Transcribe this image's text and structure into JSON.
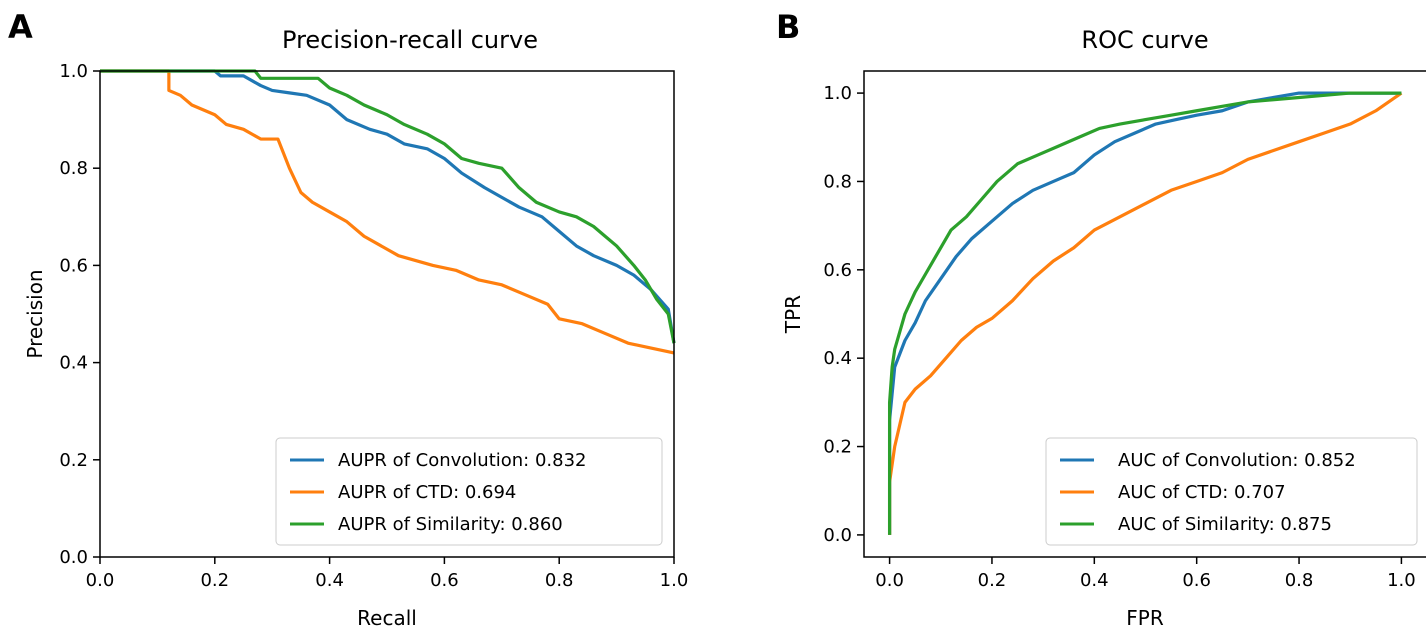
{
  "figure": {
    "panels": [
      "A",
      "B"
    ]
  },
  "chart_data": [
    {
      "type": "line",
      "panel": "A",
      "title": "Precision-recall curve",
      "xlabel": "Recall",
      "ylabel": "Precision",
      "xlim": [
        0,
        1
      ],
      "ylim": [
        0,
        1
      ],
      "xticks": [
        0.0,
        0.2,
        0.4,
        0.6,
        0.8,
        1.0
      ],
      "yticks": [
        0.0,
        0.2,
        0.4,
        0.6,
        0.8,
        1.0
      ],
      "xtick_labels": [
        "0.0",
        "0.2",
        "0.4",
        "0.6",
        "0.8",
        "1.0"
      ],
      "ytick_labels": [
        "0.0",
        "0.2",
        "0.4",
        "0.6",
        "0.8",
        "1.0"
      ],
      "grid": false,
      "legend_position": "lower-right",
      "series": [
        {
          "name": "AUPR of Convolution: 0.832",
          "color": "#1f77b4",
          "x": [
            0.0,
            0.2,
            0.21,
            0.25,
            0.28,
            0.3,
            0.33,
            0.36,
            0.4,
            0.43,
            0.47,
            0.5,
            0.53,
            0.57,
            0.6,
            0.63,
            0.67,
            0.7,
            0.73,
            0.77,
            0.8,
            0.83,
            0.86,
            0.9,
            0.93,
            0.96,
            0.99,
            1.0
          ],
          "y": [
            1.0,
            1.0,
            0.99,
            0.99,
            0.97,
            0.96,
            0.955,
            0.95,
            0.93,
            0.9,
            0.88,
            0.87,
            0.85,
            0.84,
            0.82,
            0.79,
            0.76,
            0.74,
            0.72,
            0.7,
            0.67,
            0.64,
            0.62,
            0.6,
            0.58,
            0.55,
            0.51,
            0.44
          ]
        },
        {
          "name": "AUPR of CTD: 0.694",
          "color": "#ff7f0e",
          "x": [
            0.0,
            0.12,
            0.12,
            0.14,
            0.16,
            0.18,
            0.2,
            0.22,
            0.25,
            0.28,
            0.31,
            0.33,
            0.35,
            0.37,
            0.4,
            0.43,
            0.46,
            0.49,
            0.52,
            0.55,
            0.58,
            0.62,
            0.66,
            0.7,
            0.74,
            0.78,
            0.8,
            0.84,
            0.88,
            0.92,
            0.96,
            1.0
          ],
          "y": [
            1.0,
            1.0,
            0.96,
            0.95,
            0.93,
            0.92,
            0.91,
            0.89,
            0.88,
            0.86,
            0.86,
            0.8,
            0.75,
            0.73,
            0.71,
            0.69,
            0.66,
            0.64,
            0.62,
            0.61,
            0.6,
            0.59,
            0.57,
            0.56,
            0.54,
            0.52,
            0.49,
            0.48,
            0.46,
            0.44,
            0.43,
            0.42
          ]
        },
        {
          "name": "AUPR of Similarity: 0.860",
          "color": "#2ca02c",
          "x": [
            0.0,
            0.27,
            0.28,
            0.31,
            0.34,
            0.38,
            0.4,
            0.43,
            0.46,
            0.5,
            0.53,
            0.57,
            0.6,
            0.63,
            0.66,
            0.7,
            0.73,
            0.76,
            0.8,
            0.83,
            0.86,
            0.88,
            0.9,
            0.93,
            0.95,
            0.97,
            0.99,
            1.0
          ],
          "y": [
            1.0,
            1.0,
            0.985,
            0.985,
            0.985,
            0.985,
            0.965,
            0.95,
            0.93,
            0.91,
            0.89,
            0.87,
            0.85,
            0.82,
            0.81,
            0.8,
            0.76,
            0.73,
            0.71,
            0.7,
            0.68,
            0.66,
            0.64,
            0.6,
            0.57,
            0.53,
            0.5,
            0.44
          ]
        }
      ]
    },
    {
      "type": "line",
      "panel": "B",
      "title": "ROC curve",
      "xlabel": "FPR",
      "ylabel": "TPR",
      "xlim": [
        -0.05,
        1.05
      ],
      "ylim": [
        -0.05,
        1.05
      ],
      "xticks": [
        0.0,
        0.2,
        0.4,
        0.6,
        0.8,
        1.0
      ],
      "yticks": [
        0.0,
        0.2,
        0.4,
        0.6,
        0.8,
        1.0
      ],
      "xtick_labels": [
        "0.0",
        "0.2",
        "0.4",
        "0.6",
        "0.8",
        "1.0"
      ],
      "ytick_labels": [
        "0.0",
        "0.2",
        "0.4",
        "0.6",
        "0.8",
        "1.0"
      ],
      "grid": false,
      "legend_position": "lower-right",
      "series": [
        {
          "name": "AUC of Convolution: 0.852",
          "color": "#1f77b4",
          "x": [
            0.0,
            0.0,
            0.005,
            0.01,
            0.02,
            0.03,
            0.05,
            0.07,
            0.1,
            0.13,
            0.16,
            0.2,
            0.24,
            0.28,
            0.32,
            0.36,
            0.4,
            0.44,
            0.48,
            0.52,
            0.56,
            0.6,
            0.65,
            0.7,
            0.75,
            0.8,
            0.9,
            1.0
          ],
          "y": [
            0.0,
            0.26,
            0.32,
            0.38,
            0.41,
            0.44,
            0.48,
            0.53,
            0.58,
            0.63,
            0.67,
            0.71,
            0.75,
            0.78,
            0.8,
            0.82,
            0.86,
            0.89,
            0.91,
            0.93,
            0.94,
            0.95,
            0.96,
            0.98,
            0.99,
            1.0,
            1.0,
            1.0
          ]
        },
        {
          "name": "AUC of CTD: 0.707",
          "color": "#ff7f0e",
          "x": [
            0.0,
            0.0,
            0.005,
            0.01,
            0.02,
            0.03,
            0.05,
            0.08,
            0.11,
            0.14,
            0.17,
            0.2,
            0.24,
            0.28,
            0.32,
            0.36,
            0.4,
            0.45,
            0.5,
            0.55,
            0.6,
            0.65,
            0.7,
            0.75,
            0.8,
            0.85,
            0.9,
            0.95,
            1.0
          ],
          "y": [
            0.0,
            0.12,
            0.16,
            0.2,
            0.25,
            0.3,
            0.33,
            0.36,
            0.4,
            0.44,
            0.47,
            0.49,
            0.53,
            0.58,
            0.62,
            0.65,
            0.69,
            0.72,
            0.75,
            0.78,
            0.8,
            0.82,
            0.85,
            0.87,
            0.89,
            0.91,
            0.93,
            0.96,
            1.0
          ]
        },
        {
          "name": "AUC of Similarity: 0.875",
          "color": "#2ca02c",
          "x": [
            0.0,
            0.0,
            0.005,
            0.01,
            0.02,
            0.03,
            0.05,
            0.07,
            0.09,
            0.12,
            0.15,
            0.18,
            0.21,
            0.25,
            0.29,
            0.33,
            0.37,
            0.41,
            0.45,
            0.5,
            0.55,
            0.6,
            0.65,
            0.7,
            0.8,
            0.9,
            1.0
          ],
          "y": [
            0.0,
            0.3,
            0.38,
            0.42,
            0.46,
            0.5,
            0.55,
            0.59,
            0.63,
            0.69,
            0.72,
            0.76,
            0.8,
            0.84,
            0.86,
            0.88,
            0.9,
            0.92,
            0.93,
            0.94,
            0.95,
            0.96,
            0.97,
            0.98,
            0.99,
            1.0,
            1.0
          ]
        }
      ]
    }
  ]
}
